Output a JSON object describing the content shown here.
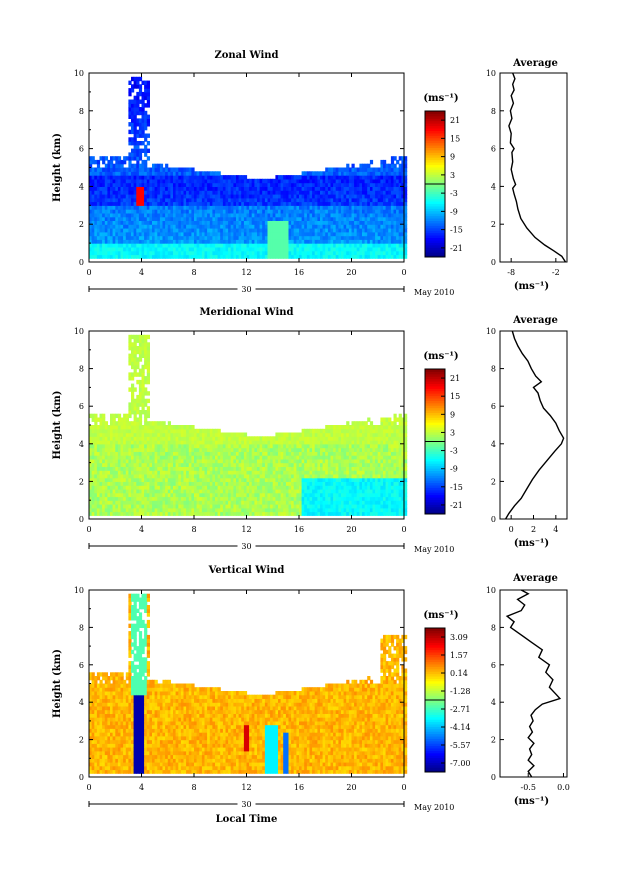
{
  "chart_data": [
    {
      "type": "heatmap",
      "title": "Zonal Wind",
      "ylabel": "Height (km)",
      "ylim": [
        0,
        10
      ],
      "xlim": [
        0,
        24
      ],
      "x_ticks": [
        "0",
        "4",
        "8",
        "12",
        "16",
        "20",
        "0"
      ],
      "y_ticks": [
        "0",
        "2",
        "4",
        "6",
        "8",
        "10"
      ],
      "date_label": "30",
      "month_label": "May 2010",
      "colorbar": {
        "unit": "(ms⁻¹)",
        "ticks": [
          "21",
          "15",
          "9",
          "3",
          "-3",
          "-9",
          "-15",
          "-21"
        ],
        "range": [
          -24,
          24
        ]
      },
      "average_profile": {
        "title": "Average",
        "xlabel": "(ms⁻¹)",
        "x_ticks": [
          "-8",
          "-2"
        ],
        "y_ticks": [
          "0",
          "2",
          "4",
          "6",
          "8",
          "10"
        ],
        "xlim": [
          -9.5,
          -0.5
        ],
        "points": [
          [
            -0.7,
            0
          ],
          [
            -1.2,
            0.3
          ],
          [
            -2.3,
            0.6
          ],
          [
            -3.5,
            0.9
          ],
          [
            -4.8,
            1.3
          ],
          [
            -5.9,
            1.8
          ],
          [
            -6.7,
            2.3
          ],
          [
            -7.1,
            2.8
          ],
          [
            -7.3,
            3.2
          ],
          [
            -7.6,
            3.6
          ],
          [
            -7.8,
            3.9
          ],
          [
            -7.4,
            4.1
          ],
          [
            -7.7,
            4.4
          ],
          [
            -8.0,
            4.9
          ],
          [
            -7.8,
            5.3
          ],
          [
            -7.9,
            5.8
          ],
          [
            -7.6,
            6.0
          ],
          [
            -8.1,
            6.3
          ],
          [
            -8.0,
            6.8
          ],
          [
            -8.3,
            7.2
          ],
          [
            -7.9,
            7.6
          ],
          [
            -8.1,
            8.0
          ],
          [
            -7.7,
            8.4
          ],
          [
            -8.0,
            8.8
          ],
          [
            -7.6,
            9.1
          ],
          [
            -7.8,
            9.4
          ],
          [
            -7.5,
            9.7
          ],
          [
            -7.8,
            10.0
          ]
        ]
      }
    },
    {
      "type": "heatmap",
      "title": "Meridional Wind",
      "ylabel": "Height (km)",
      "ylim": [
        0,
        10
      ],
      "xlim": [
        0,
        24
      ],
      "x_ticks": [
        "0",
        "4",
        "8",
        "12",
        "16",
        "20",
        "0"
      ],
      "y_ticks": [
        "0",
        "2",
        "4",
        "6",
        "8",
        "10"
      ],
      "date_label": "30",
      "month_label": "May 2010",
      "colorbar": {
        "unit": "(ms⁻¹)",
        "ticks": [
          "21",
          "15",
          "9",
          "3",
          "-3",
          "-9",
          "-15",
          "-21"
        ],
        "range": [
          -24,
          24
        ]
      },
      "average_profile": {
        "title": "Average",
        "xlabel": "(ms⁻¹)",
        "x_ticks": [
          "0",
          "2",
          "4"
        ],
        "y_ticks": [
          "0",
          "2",
          "4",
          "6",
          "8",
          "10"
        ],
        "xlim": [
          -1,
          5
        ],
        "points": [
          [
            -0.5,
            0
          ],
          [
            -0.2,
            0.3
          ],
          [
            0.3,
            0.7
          ],
          [
            0.9,
            1.1
          ],
          [
            1.4,
            1.6
          ],
          [
            1.9,
            2.1
          ],
          [
            2.5,
            2.6
          ],
          [
            3.2,
            3.1
          ],
          [
            3.9,
            3.6
          ],
          [
            4.5,
            4.0
          ],
          [
            4.7,
            4.3
          ],
          [
            4.3,
            4.7
          ],
          [
            4.0,
            5.1
          ],
          [
            3.5,
            5.5
          ],
          [
            2.9,
            5.9
          ],
          [
            2.6,
            6.3
          ],
          [
            2.4,
            6.7
          ],
          [
            2.0,
            7.0
          ],
          [
            2.7,
            7.3
          ],
          [
            2.2,
            7.6
          ],
          [
            1.8,
            8.0
          ],
          [
            1.5,
            8.4
          ],
          [
            1.0,
            8.8
          ],
          [
            0.6,
            9.2
          ],
          [
            0.3,
            9.6
          ],
          [
            0.1,
            10.0
          ]
        ]
      }
    },
    {
      "type": "heatmap",
      "title": "Vertical Wind",
      "xlabel": "Local Time",
      "ylabel": "Height (km)",
      "ylim": [
        0,
        10
      ],
      "xlim": [
        0,
        24
      ],
      "x_ticks": [
        "0",
        "4",
        "8",
        "12",
        "16",
        "20",
        "0"
      ],
      "y_ticks": [
        "0",
        "2",
        "4",
        "6",
        "8",
        "10"
      ],
      "date_label": "30",
      "month_label": "May 2010",
      "colorbar": {
        "unit": "(ms⁻¹)",
        "ticks": [
          "3.09",
          "1.57",
          "0.14",
          "-1.28",
          "-2.71",
          "-4.14",
          "-5.57",
          "-7.00"
        ],
        "range": [
          -7.7,
          3.8
        ]
      },
      "average_profile": {
        "title": "Average",
        "xlabel": "(ms⁻¹)",
        "x_ticks": [
          "-0.5",
          "0.0"
        ],
        "y_ticks": [
          "0",
          "2",
          "4",
          "6",
          "8",
          "10"
        ],
        "xlim": [
          -0.9,
          0.05
        ],
        "points": [
          [
            -0.45,
            0
          ],
          [
            -0.5,
            0.3
          ],
          [
            -0.42,
            0.6
          ],
          [
            -0.5,
            0.9
          ],
          [
            -0.45,
            1.2
          ],
          [
            -0.48,
            1.5
          ],
          [
            -0.42,
            1.8
          ],
          [
            -0.5,
            2.1
          ],
          [
            -0.44,
            2.4
          ],
          [
            -0.48,
            2.7
          ],
          [
            -0.43,
            3.0
          ],
          [
            -0.46,
            3.3
          ],
          [
            -0.4,
            3.6
          ],
          [
            -0.3,
            3.9
          ],
          [
            -0.05,
            4.2
          ],
          [
            -0.1,
            4.4
          ],
          [
            -0.2,
            4.8
          ],
          [
            -0.15,
            5.2
          ],
          [
            -0.25,
            5.6
          ],
          [
            -0.2,
            6.0
          ],
          [
            -0.35,
            6.4
          ],
          [
            -0.3,
            6.8
          ],
          [
            -0.45,
            7.2
          ],
          [
            -0.6,
            7.6
          ],
          [
            -0.75,
            8.0
          ],
          [
            -0.7,
            8.3
          ],
          [
            -0.8,
            8.6
          ],
          [
            -0.6,
            8.9
          ],
          [
            -0.55,
            9.2
          ],
          [
            -0.65,
            9.5
          ],
          [
            -0.5,
            9.8
          ],
          [
            -0.6,
            10.0
          ]
        ]
      }
    }
  ]
}
